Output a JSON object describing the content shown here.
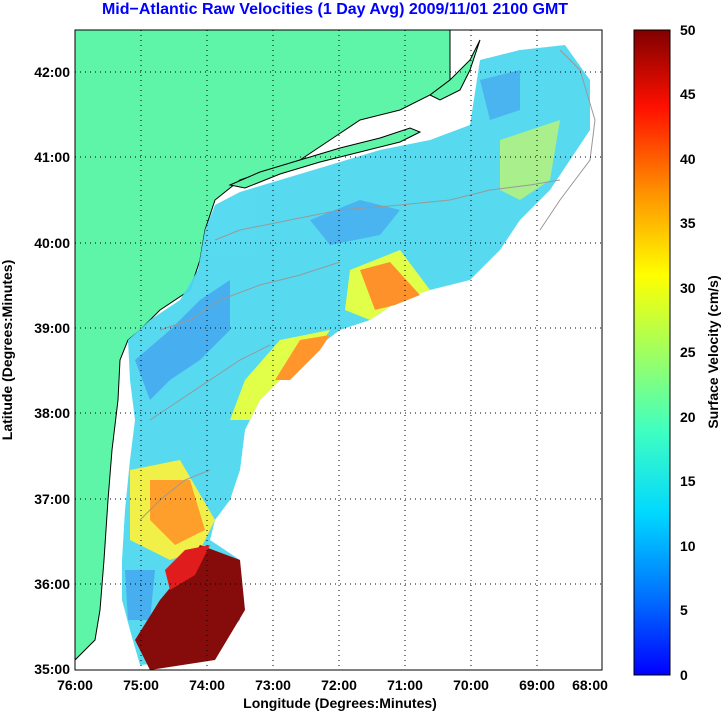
{
  "title": "Mid−Atlantic Raw Velocities (1 Day Avg) 2009/11/01 2100 GMT",
  "map": {
    "x_label": "Longitude (Degrees:Minutes)",
    "y_label": "Latitude (Degrees:Minutes)",
    "x_ticks": [
      "76:00",
      "75:00",
      "74:00",
      "73:00",
      "72:00",
      "71:00",
      "70:00",
      "69:00",
      "68:00"
    ],
    "y_ticks": [
      "42:00",
      "41:00",
      "40:00",
      "39:00",
      "38:00",
      "37:00",
      "36:00",
      "35:00"
    ],
    "lon_range": [
      -76,
      -68
    ],
    "lat_range": [
      35,
      42.5
    ],
    "land_color": "#5ff5a8",
    "coast_color": "#000000",
    "bathymetry_color": "#999999"
  },
  "colorbar": {
    "label": "Surface Velocity (cm/s)",
    "min": 0,
    "max": 50,
    "ticks": [
      "50",
      "45",
      "40",
      "35",
      "30",
      "25",
      "20",
      "15",
      "10",
      "5",
      "0"
    ],
    "colormap": "jet"
  }
}
